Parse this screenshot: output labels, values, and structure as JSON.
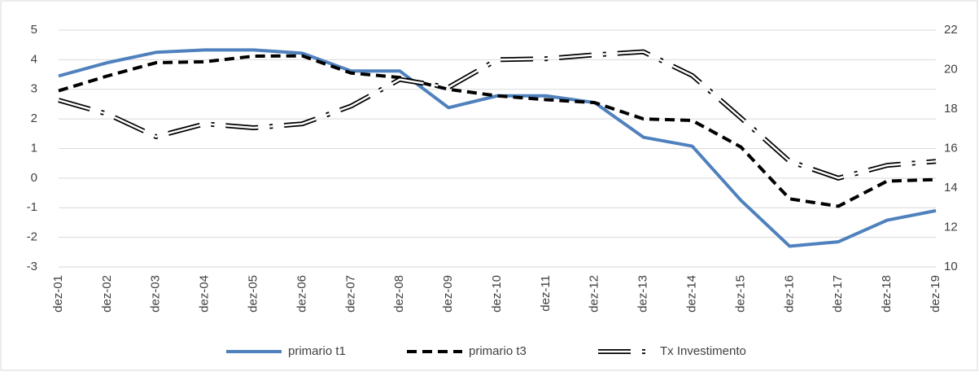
{
  "chart_data": {
    "type": "line",
    "categories": [
      "dez-01",
      "dez-02",
      "dez-03",
      "dez-04",
      "dez-05",
      "dez-06",
      "dez-07",
      "dez-08",
      "dez-09",
      "dez-10",
      "dez-11",
      "dez-12",
      "dez-13",
      "dez-14",
      "dez-15",
      "dez-16",
      "dez-17",
      "dez-18",
      "dez-19"
    ],
    "series": [
      {
        "name": "primario t1",
        "color": "#4f81bd",
        "style": "solid",
        "values": [
          3.45,
          3.9,
          4.25,
          4.33,
          4.33,
          4.22,
          3.62,
          3.62,
          2.38,
          2.78,
          2.78,
          2.55,
          1.38,
          1.08,
          -0.75,
          -2.3,
          -2.15,
          -1.42,
          -1.1
        ]
      },
      {
        "name": "primario t3",
        "color": "#000000",
        "style": "dashed",
        "values": [
          2.95,
          3.45,
          3.9,
          3.93,
          4.12,
          4.13,
          3.55,
          3.4,
          3.0,
          2.78,
          2.65,
          2.55,
          2.0,
          1.95,
          1.05,
          -0.7,
          -0.95,
          -0.1,
          -0.05
        ]
      },
      {
        "name": "Tx Investimento",
        "color": "#000000",
        "style": "double-dash-dot",
        "axis": "y2",
        "values": [
          18.45,
          17.75,
          16.6,
          17.25,
          17.05,
          17.25,
          18.15,
          19.5,
          19.1,
          20.5,
          20.55,
          20.75,
          20.9,
          19.7,
          17.55,
          15.35,
          14.5,
          15.15,
          15.35
        ]
      }
    ],
    "ylim": [
      -3,
      5
    ],
    "yticks": [
      -3,
      -2,
      -1,
      0,
      1,
      2,
      3,
      4,
      5
    ],
    "y2lim": [
      10,
      22
    ],
    "y2ticks": [
      10,
      12,
      14,
      16,
      18,
      20,
      22
    ],
    "grid": true,
    "legend": "bottom"
  }
}
